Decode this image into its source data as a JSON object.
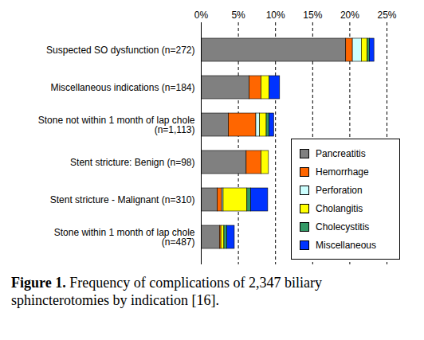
{
  "chart_data": {
    "type": "bar",
    "orientation": "horizontal",
    "stacked": true,
    "caption": "Figure 1. Frequency of complications of 2,347 biliary sphincterotomies by indication [16].",
    "categories": [
      "Suspected SO dysfunction (n=272)",
      "Miscellaneous indications (n=184)",
      "Stone not within 1 month of lap chole\n(n=1,113)",
      "Stent stricture: Benign (n=98)",
      "Stent stricture - Malignant (n=310)",
      "Stone within 1 month of lap chole\n(n=487)"
    ],
    "series": [
      {
        "name": "Pancreatitis",
        "color": "#808080",
        "values": [
          19.5,
          6.5,
          3.7,
          6.1,
          2.2,
          2.5
        ]
      },
      {
        "name": "Hemorrhage",
        "color": "#ff6600",
        "values": [
          0.9,
          1.6,
          3.7,
          2.0,
          0.6,
          0.2
        ]
      },
      {
        "name": "Perforation",
        "color": "#ccffff",
        "values": [
          1.2,
          0,
          0.5,
          0,
          0.2,
          0
        ]
      },
      {
        "name": "Cholangitis",
        "color": "#ffff00",
        "values": [
          0.8,
          1.1,
          0.9,
          1.0,
          3.2,
          0.4
        ]
      },
      {
        "name": "Cholecystitis",
        "color": "#339966",
        "values": [
          0.3,
          0,
          0.4,
          0,
          0.5,
          0.4
        ]
      },
      {
        "name": "Miscellaneous",
        "color": "#0033ff",
        "values": [
          0.6,
          1.4,
          0.6,
          0,
          2.3,
          1.0
        ]
      }
    ],
    "xlim": [
      0,
      25
    ],
    "xticks": [
      {
        "value": 0,
        "label": "0%"
      },
      {
        "value": 5,
        "label": "5%"
      },
      {
        "value": 10,
        "label": "10%"
      },
      {
        "value": 15,
        "label": "15%"
      },
      {
        "value": 20,
        "label": "20%"
      },
      {
        "value": 25,
        "label": "25%"
      }
    ],
    "grid": true,
    "legend": "lower right"
  }
}
